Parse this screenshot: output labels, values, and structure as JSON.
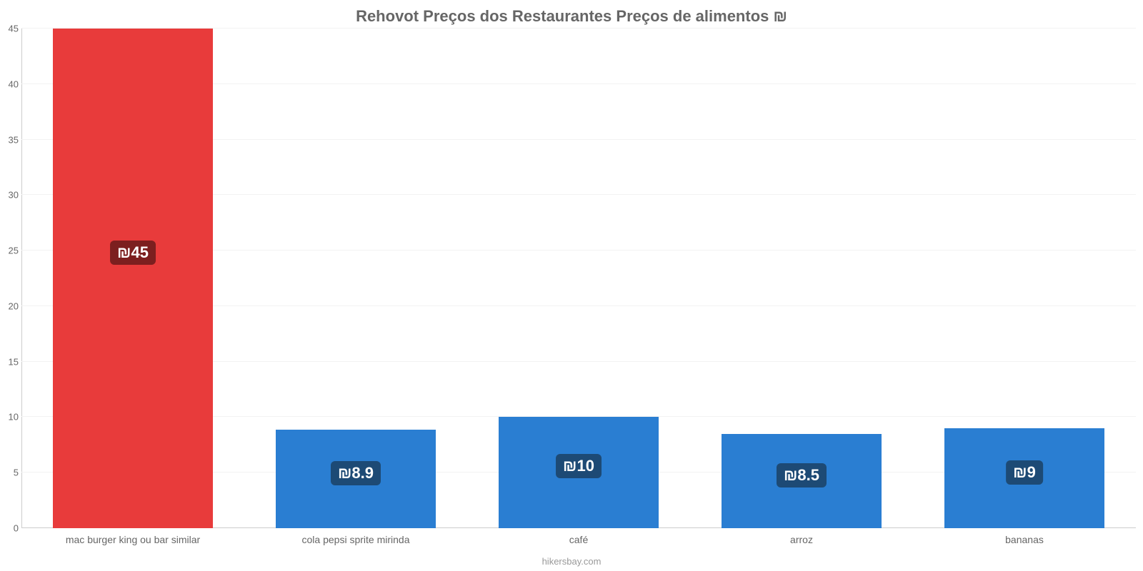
{
  "chart": {
    "type": "bar",
    "title": "Rehovot Preços dos Restaurantes Preços de alimentos ₪",
    "title_fontsize": 22,
    "title_color": "#666666",
    "background_color": "#ffffff",
    "grid_color": "#f2f2f2",
    "axis_color": "#cccccc",
    "categories": [
      "mac burger king ou bar similar",
      "cola pepsi sprite mirinda",
      "café",
      "arroz",
      "bananas"
    ],
    "values": [
      45,
      8.9,
      10,
      8.5,
      9
    ],
    "value_labels": [
      "₪45",
      "₪8.9",
      "₪10",
      "₪8.5",
      "₪9"
    ],
    "bar_colors": [
      "#e83b3b",
      "#2a7ed2",
      "#2a7ed2",
      "#2a7ed2",
      "#2a7ed2"
    ],
    "label_bg_colors": [
      "#7c1f1f",
      "#1d4a75",
      "#1d4a75",
      "#1d4a75",
      "#1d4a75"
    ],
    "ylim": [
      0,
      45
    ],
    "yticks": [
      0,
      5,
      10,
      15,
      20,
      25,
      30,
      35,
      40,
      45
    ],
    "bar_width": 0.72,
    "source": "hikersbay.com",
    "tick_fontsize": 13,
    "tick_color": "#666666",
    "x_label_fontsize": 14
  }
}
